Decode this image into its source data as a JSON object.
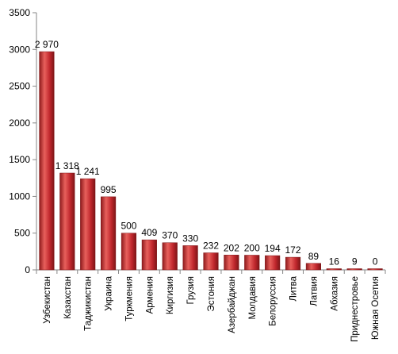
{
  "chart_data": {
    "type": "bar",
    "title": "",
    "xlabel": "",
    "ylabel": "",
    "categories": [
      "Узбекистан",
      "Казахстан",
      "Таджикистан",
      "Украина",
      "Туркмения",
      "Армения",
      "Киргизия",
      "Грузия",
      "Эстония",
      "Азербайджан",
      "Молдавия",
      "Белоруссия",
      "Литва",
      "Латвия",
      "Абхазия",
      "Приднестровье",
      "Южная Осетия"
    ],
    "values": [
      2970,
      1318,
      1241,
      995,
      500,
      409,
      370,
      330,
      232,
      202,
      200,
      194,
      172,
      89,
      16,
      9,
      0
    ],
    "data_labels": [
      "2 970",
      "1 318",
      "1 241",
      "995",
      "500",
      "409",
      "370",
      "330",
      "232",
      "202",
      "200",
      "194",
      "172",
      "89",
      "16",
      "9",
      "0"
    ],
    "yticks": [
      "0",
      "500",
      "1000",
      "1500",
      "2000",
      "2500",
      "3000",
      "3500"
    ],
    "ylim": [
      0,
      3500
    ],
    "grid": false,
    "legend": "none",
    "colors": {
      "bar_light": "#e8605c",
      "bar_mid": "#c0272d",
      "bar_dark": "#7d1517",
      "axis": "#868686"
    }
  }
}
